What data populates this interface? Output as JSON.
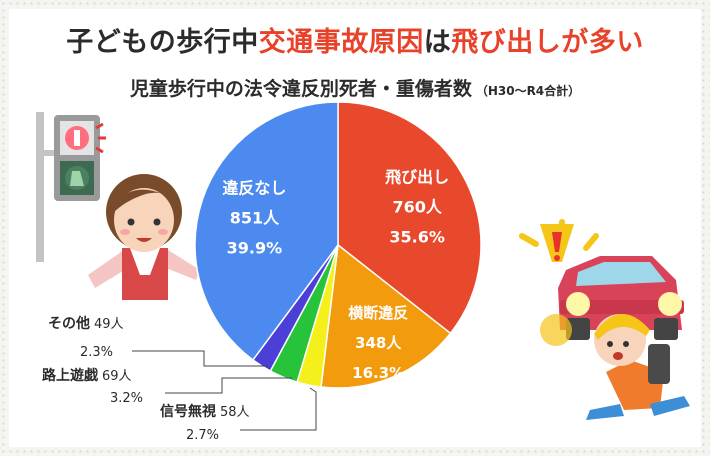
{
  "title": {
    "part1": "子どもの歩行中",
    "highlight1": "交通事故原因",
    "part2": "は",
    "highlight2": "飛び出しが多い"
  },
  "subtitle": {
    "main": "児童歩行中の法令違反別死者・重傷者数",
    "note": "（H30〜R4合計）"
  },
  "chart_data": {
    "type": "pie",
    "title": "児童歩行中の法令違反別死者・重傷者数",
    "slices": [
      {
        "label": "飛び出し",
        "count": "760人",
        "pct": "35.6%",
        "value": 760,
        "color": "#e8482c"
      },
      {
        "label": "横断違反",
        "count": "348人",
        "pct": "16.3%",
        "value": 348,
        "color": "#f29b0c"
      },
      {
        "label": "信号無視",
        "count": "58人",
        "pct": "2.7%",
        "value": 58,
        "color": "#f5ef1c"
      },
      {
        "label": "路上遊戯",
        "count": "69人",
        "pct": "3.2%",
        "value": 69,
        "color": "#27c43b"
      },
      {
        "label": "その他",
        "count": "49人",
        "pct": "2.3%",
        "value": 49,
        "color": "#4b3fd8"
      },
      {
        "label": "違反なし",
        "count": "851人",
        "pct": "39.9%",
        "value": 851,
        "color": "#4d8af0"
      }
    ]
  },
  "colors": {
    "background": "#f4f5f1",
    "card": "#ffffff",
    "accent": "#e8432a",
    "text": "#2b2b2b"
  }
}
